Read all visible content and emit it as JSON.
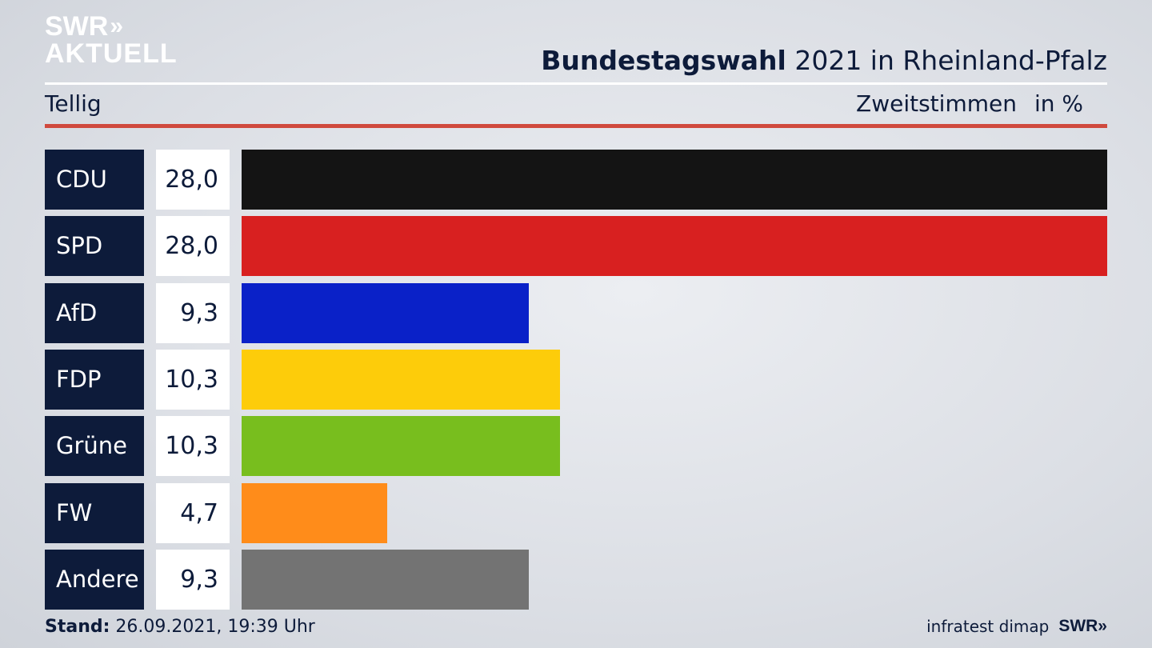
{
  "logo": {
    "line1": "SWR",
    "line1_chevrons": "»",
    "line2": "AKTUELL"
  },
  "header": {
    "title_bold": "Bundestagswahl",
    "title_rest": " 2021 in Rheinland-Pfalz",
    "subtitle_left": "Tellig",
    "subtitle_right_1": "Zweitstimmen",
    "subtitle_right_2": "in %"
  },
  "footer": {
    "stand_label": "Stand:",
    "stand_value": " 26.09.2021, 19:39 Uhr",
    "source": "infratest dimap",
    "brand": "SWR»"
  },
  "colors": {
    "navy": "#0d1b3a",
    "rule_red": "#d04a3e"
  },
  "chart_data": {
    "type": "bar",
    "orientation": "horizontal",
    "categories": [
      "CDU",
      "SPD",
      "AfD",
      "FDP",
      "Grüne",
      "FW",
      "Andere"
    ],
    "values": [
      28.0,
      28.0,
      9.3,
      10.3,
      10.3,
      4.7,
      9.3
    ],
    "value_labels": [
      "28,0",
      "28,0",
      "9,3",
      "10,3",
      "10,3",
      "4,7",
      "9,3"
    ],
    "bar_colors": [
      "#141414",
      "#d82020",
      "#0a21c8",
      "#fdcc0a",
      "#78be1e",
      "#ff8c1a",
      "#737373"
    ],
    "xlim": [
      0,
      28.0
    ]
  }
}
